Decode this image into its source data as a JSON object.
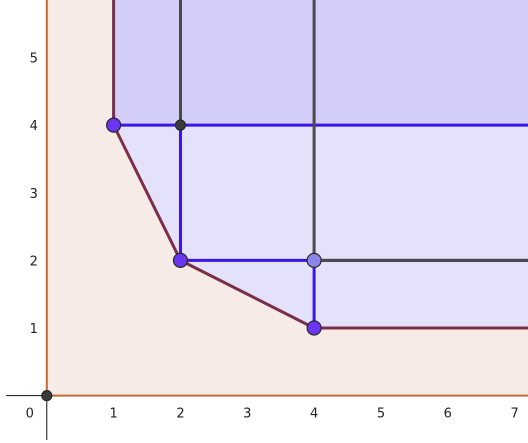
{
  "chart_data": {
    "type": "scatter",
    "title": "",
    "xlabel": "",
    "ylabel": "",
    "grid": false,
    "xlim": [
      -0.7,
      7.2
    ],
    "ylim": [
      -0.7,
      5.85
    ],
    "x_ticks": [
      "0",
      "1",
      "2",
      "3",
      "4",
      "5",
      "6",
      "7"
    ],
    "y_ticks": [
      "1",
      "2",
      "3",
      "4",
      "5"
    ],
    "colors": {
      "feasible_fill": "#f6ebe6",
      "axis_orange": "#c8692c",
      "boundary": "#7a2f48",
      "blue_region_light": "#e4e2fb",
      "blue_region_dark": "#d2cdf9",
      "blue_line": "#3b15e6",
      "gray_line": "#4a4a4a",
      "point_purple": "#6b35f2",
      "point_lavender": "#8b86ea",
      "point_dark": "#3a3a3a"
    },
    "series": [
      {
        "type": "point",
        "points": [
          [
            0,
            0
          ],
          [
            1,
            4
          ],
          [
            2,
            4
          ],
          [
            2,
            2
          ],
          [
            4,
            2
          ],
          [
            4,
            1
          ]
        ]
      },
      {
        "type": "line",
        "points": [
          [
            1,
            5.85
          ],
          [
            1,
            4
          ],
          [
            2,
            2
          ],
          [
            4,
            1
          ],
          [
            7.2,
            1
          ]
        ]
      },
      {
        "type": "line",
        "points": [
          [
            1,
            4
          ],
          [
            7.2,
            4
          ]
        ]
      },
      {
        "type": "line",
        "points": [
          [
            2,
            4
          ],
          [
            2,
            2
          ],
          [
            7.2,
            2
          ]
        ]
      },
      {
        "type": "line",
        "points": [
          [
            4,
            2
          ],
          [
            4,
            1
          ]
        ]
      },
      {
        "type": "line",
        "points": [
          [
            2,
            5.85
          ],
          [
            2,
            4
          ]
        ]
      },
      {
        "type": "line",
        "points": [
          [
            4,
            5.85
          ],
          [
            4,
            2
          ]
        ]
      },
      {
        "type": "line",
        "points": [
          [
            4,
            2
          ],
          [
            7.2,
            2
          ]
        ]
      }
    ]
  }
}
